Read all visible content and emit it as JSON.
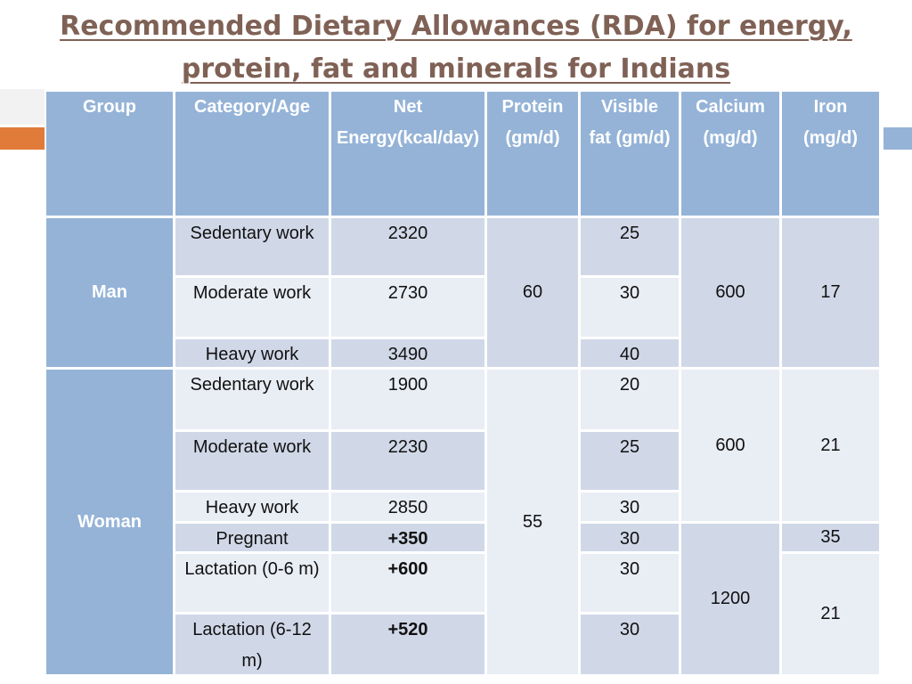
{
  "title": "Recommended Dietary Allowances (RDA) for energy, protein, fat and minerals for Indians",
  "table": {
    "header": [
      "Group",
      "Category/Age",
      "Net Energy(kcal/day)",
      "Protein (gm/d)",
      "Visible fat (gm/d)",
      "Calcium (mg/d)",
      "Iron (mg/d)"
    ],
    "groups": [
      "Man",
      "Woman"
    ],
    "rows": [
      {
        "category": "Sedentary work",
        "energy": "2320",
        "fat": "25"
      },
      {
        "category": "Moderate work",
        "energy": "2730",
        "fat": "30"
      },
      {
        "category": "Heavy work",
        "energy": "3490",
        "fat": "40"
      },
      {
        "category": "Sedentary work",
        "energy": "1900",
        "fat": "20"
      },
      {
        "category": "Moderate work",
        "energy": "2230",
        "fat": "25"
      },
      {
        "category": "Heavy work",
        "energy": "2850",
        "fat": "30"
      },
      {
        "category": "Pregnant",
        "energy": "+350",
        "fat": "30"
      },
      {
        "category": "Lactation (0-6 m)",
        "energy": "+600",
        "fat": "30"
      },
      {
        "category": "Lactation (6-12 m)",
        "energy": "+520",
        "fat": "30"
      }
    ],
    "protein": [
      "60",
      "55"
    ],
    "calcium": [
      "600",
      "600",
      "1200"
    ],
    "iron": [
      "17",
      "21",
      "35",
      "21"
    ]
  }
}
